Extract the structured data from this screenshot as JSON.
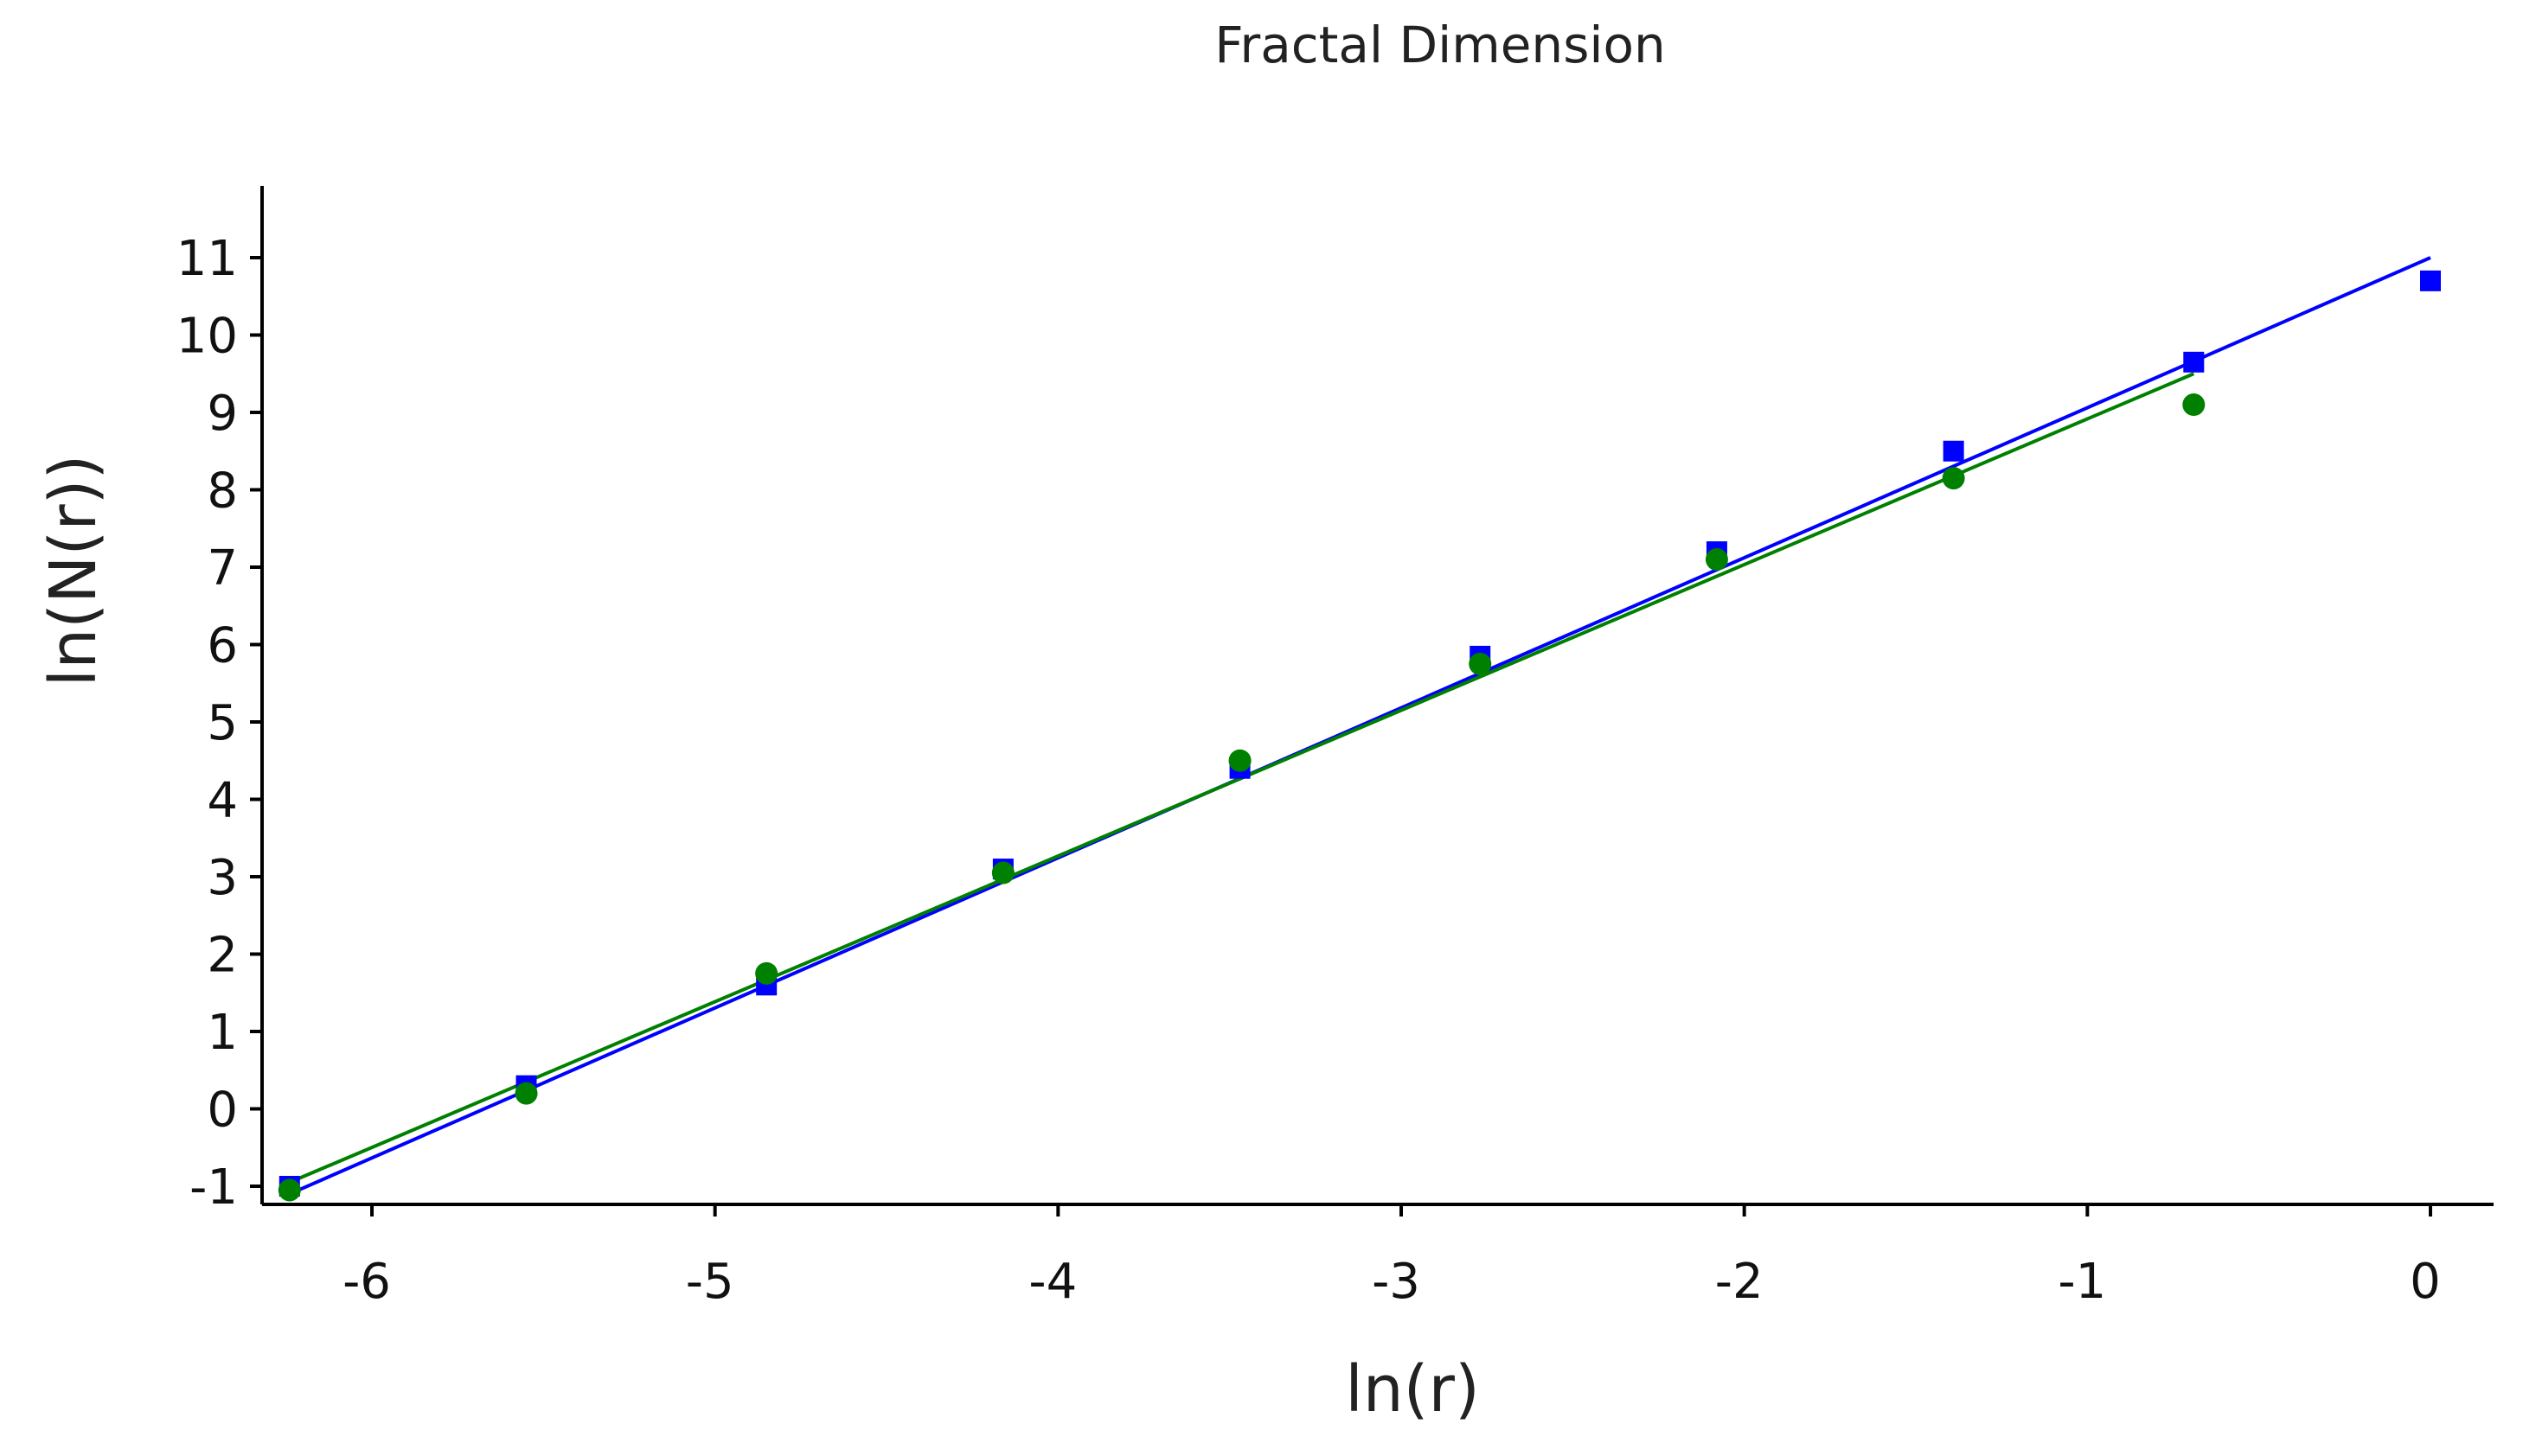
{
  "chart_data": {
    "type": "scatter",
    "title": "Fractal Dimension",
    "xlabel": "ln(r)",
    "ylabel": "ln(N(r))",
    "xlim": [
      -6.3,
      0.1
    ],
    "ylim": [
      -1.3,
      12.0
    ],
    "xticks": [
      -6,
      -5,
      -4,
      -3,
      -2,
      -1,
      0
    ],
    "yticks": [
      -1,
      0,
      1,
      2,
      3,
      4,
      5,
      6,
      7,
      8,
      9,
      10,
      11
    ],
    "grid": false,
    "series": [
      {
        "marker": "square",
        "color": "#0000ff",
        "x": [
          -6.24,
          -5.55,
          -4.85,
          -4.16,
          -3.47,
          -2.77,
          -2.08,
          -1.39,
          -0.69,
          0.0
        ],
        "y": [
          -1.0,
          0.3,
          1.6,
          3.1,
          4.4,
          5.85,
          7.2,
          8.5,
          9.65,
          10.7
        ],
        "fit": {
          "x": [
            -6.24,
            0.0
          ],
          "y": [
            -1.1,
            11.0
          ]
        }
      },
      {
        "marker": "circle",
        "color": "#008000",
        "x": [
          -6.24,
          -5.55,
          -4.85,
          -4.16,
          -3.47,
          -2.77,
          -2.08,
          -1.39,
          -0.69
        ],
        "y": [
          -1.05,
          0.2,
          1.75,
          3.05,
          4.5,
          5.75,
          7.1,
          8.15,
          9.1
        ],
        "fit": {
          "x": [
            -6.24,
            -0.69
          ],
          "y": [
            -0.95,
            9.5
          ]
        }
      }
    ]
  }
}
